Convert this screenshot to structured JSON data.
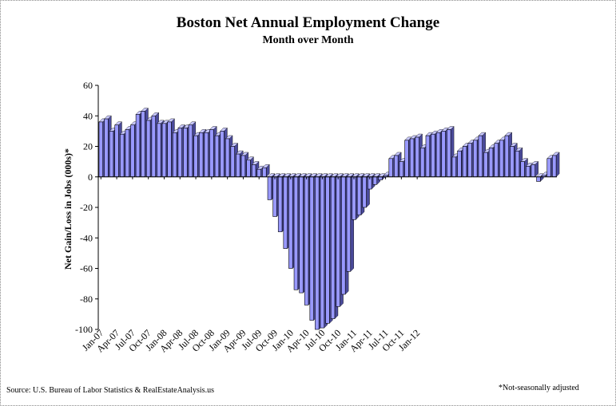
{
  "chart_data": {
    "type": "bar",
    "title": "Boston Net Annual  Employment  Change",
    "subtitle": "Month over Month",
    "ylabel": "Net Gain/Loss in Jobs (000s)*",
    "xlabel": "",
    "ylim": [
      -100,
      60
    ],
    "yticks": [
      "60",
      "40",
      "20",
      "0",
      "-20",
      "-40",
      "-60",
      "-80",
      "-100"
    ],
    "grid": false,
    "bar_color": "#9999ff",
    "bar_side_color": "#4a4a9a",
    "x_tick_labels": [
      "Jan-07",
      "Apr-07",
      "Jul-07",
      "Oct-07",
      "Jan-08",
      "Apr-08",
      "Jul-08",
      "Oct-08",
      "Jan-09",
      "Apr-09",
      "Jul-09",
      "Oct-09",
      "Jan-10",
      "Apr-10",
      "Jul-10",
      "Oct-10",
      "Jan-11",
      "Apr-11",
      "Jul-11",
      "Oct-11",
      "Jan-12"
    ],
    "x_tick_every": 3,
    "values": [
      36,
      38,
      30,
      34,
      28,
      31,
      34,
      41,
      43,
      37,
      40,
      35,
      35,
      36,
      29,
      32,
      32,
      34,
      27,
      29,
      29,
      31,
      27,
      30,
      25,
      20,
      15,
      14,
      11,
      8,
      5,
      6,
      -15,
      -26,
      -36,
      -47,
      -60,
      -74,
      -76,
      -84,
      -94,
      -100,
      -99,
      -96,
      -93,
      -85,
      -77,
      -62,
      -28,
      -25,
      -20,
      -8,
      -5,
      -2,
      1,
      12,
      14,
      10,
      24,
      25,
      26,
      19,
      27,
      28,
      29,
      30,
      31,
      13,
      17,
      20,
      22,
      24,
      27,
      16,
      19,
      22,
      24,
      27,
      20,
      17,
      10,
      7,
      8,
      -3,
      1,
      12,
      14
    ]
  },
  "source": "Source: U.S. Bureau of Labor Statistics & RealEstateAnalysis.us",
  "footnote": "*Not-seasonally adjusted"
}
